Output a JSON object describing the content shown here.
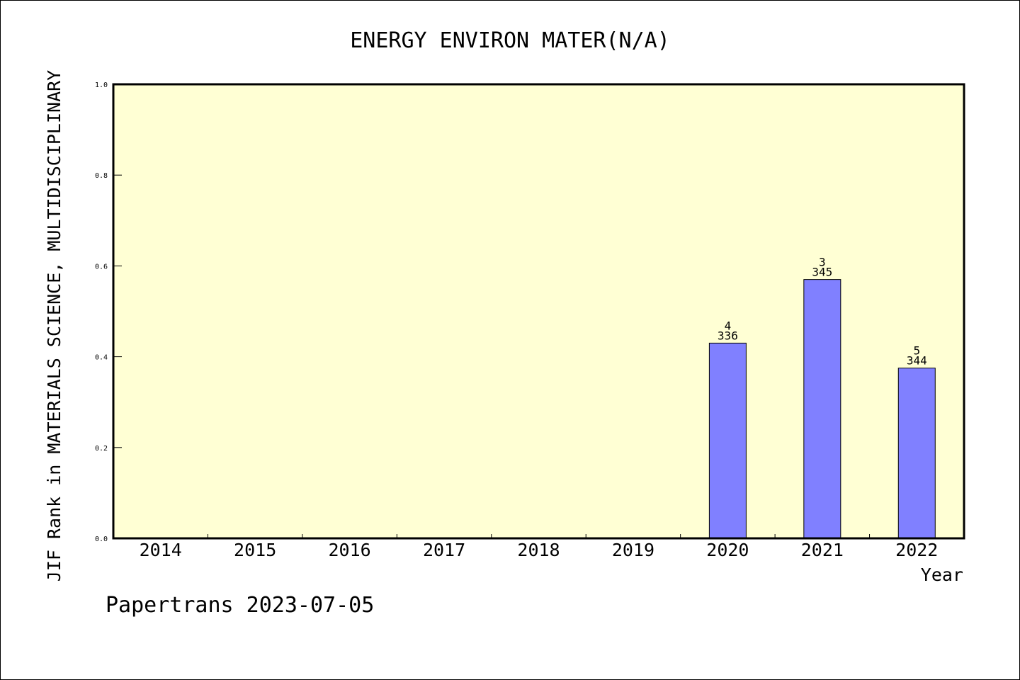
{
  "chart_data": {
    "type": "bar",
    "title": "ENERGY ENVIRON MATER(N/A)",
    "xlabel": "Year",
    "ylabel": "JIF Rank in MATERIALS SCIENCE, MULTIDISCIPLINARY",
    "categories": [
      "2014",
      "2015",
      "2016",
      "2017",
      "2018",
      "2019",
      "2020",
      "2021",
      "2022"
    ],
    "values": [
      null,
      null,
      null,
      null,
      null,
      null,
      0.43,
      0.57,
      0.375
    ],
    "ranks": [
      null,
      null,
      null,
      null,
      null,
      null,
      "4",
      "3",
      "5"
    ],
    "totals": [
      null,
      null,
      null,
      null,
      null,
      null,
      "336",
      "345",
      "344"
    ],
    "ylim": [
      0,
      1
    ],
    "yticks": [
      "0.0",
      "0.2",
      "0.4",
      "0.6",
      "0.8",
      "1.0"
    ],
    "grid": false,
    "colors": {
      "plot_background": "#ffffd4",
      "bar_fill": "#8080ff",
      "bar_stroke": "#000000"
    }
  },
  "footer": "Papertrans 2023-07-05"
}
